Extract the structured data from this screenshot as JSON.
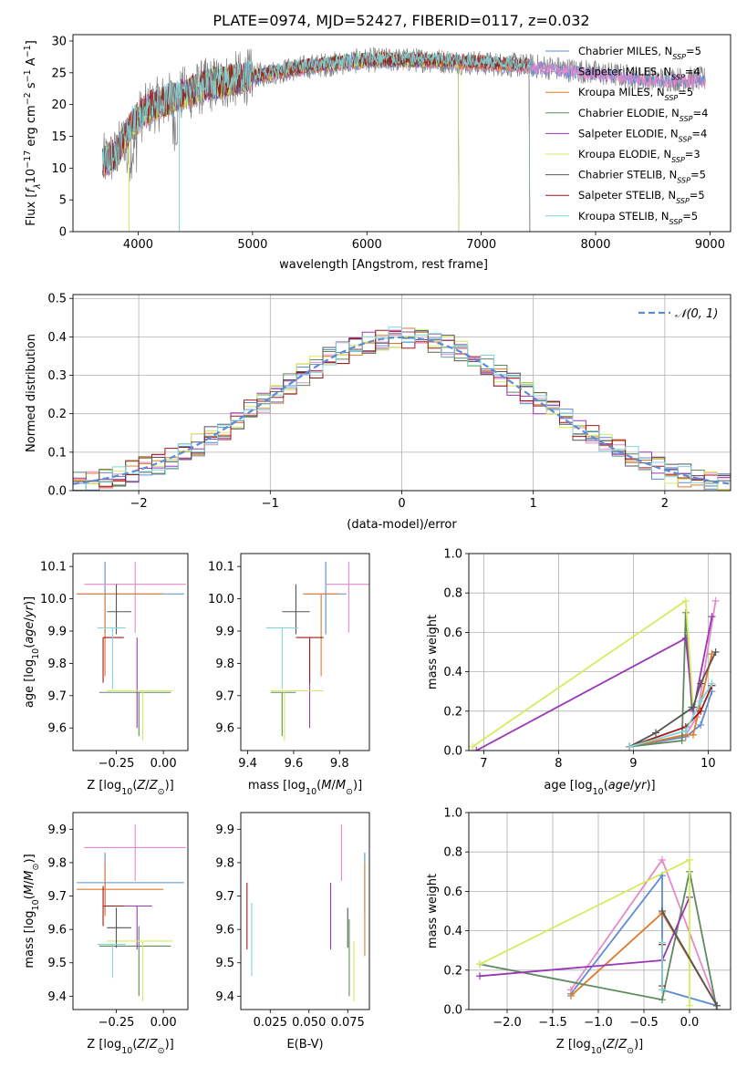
{
  "figure_title": "PLATE=0974, MJD=52427, FIBERID=0117, z=0.032",
  "colors": {
    "chabrier_miles": "#5b8bd6",
    "salpeter_miles": "#e58ac8",
    "kroupa_miles": "#e07a2a",
    "chabrier_elodie": "#5f8a5f",
    "salpeter_elodie": "#9b36b6",
    "kroupa_elodie": "#d4ec5c",
    "chabrier_stelib": "#555555",
    "salpeter_stelib": "#a01818",
    "kroupa_stelib": "#7fd6d8",
    "normal": "#5b8bd6",
    "grid": "#b0b0b0"
  },
  "chart_data": [
    {
      "id": "spectrum",
      "type": "line",
      "title": "PLATE=0974, MJD=52427, FIBERID=0117, z=0.032",
      "xlabel": "wavelength [Angstrom, rest frame]",
      "ylabel": "Flux [f_λ 10^-17 erg cm^-2 s^-1 A^-1]",
      "xlim": [
        3430,
        9180
      ],
      "ylim": [
        0,
        31
      ],
      "xticks": [
        4000,
        5000,
        6000,
        7000,
        8000,
        9000
      ],
      "yticks": [
        0,
        5,
        10,
        15,
        20,
        25,
        30
      ],
      "grid": false,
      "legend": "upper right",
      "legend_entries": [
        {
          "key": "chabrier_miles",
          "label": "Chabrier MILES, N",
          "sub": "SSP",
          "tail": "=5"
        },
        {
          "key": "salpeter_miles",
          "label": "Salpeter MILES, N",
          "sub": "SSP",
          "tail": "=4"
        },
        {
          "key": "kroupa_miles",
          "label": "Kroupa MILES, N",
          "sub": "SSP",
          "tail": "=5"
        },
        {
          "key": "chabrier_elodie",
          "label": "Chabrier ELODIE, N",
          "sub": "SSP",
          "tail": "=4"
        },
        {
          "key": "salpeter_elodie",
          "label": "Salpeter ELODIE, N",
          "sub": "SSP",
          "tail": "=4"
        },
        {
          "key": "kroupa_elodie",
          "label": "Kroupa ELODIE, N",
          "sub": "SSP",
          "tail": "=3"
        },
        {
          "key": "chabrier_stelib",
          "label": "Chabrier STELIB, N",
          "sub": "SSP",
          "tail": "=5"
        },
        {
          "key": "salpeter_stelib",
          "label": "Salpeter STELIB, N",
          "sub": "SSP",
          "tail": "=5"
        },
        {
          "key": "kroupa_stelib",
          "label": "Kroupa STELIB, N",
          "sub": "SSP",
          "tail": "=5"
        }
      ],
      "data_range": [
        3690,
        8960
      ],
      "continuum": [
        [
          3690,
          11
        ],
        [
          3800,
          12
        ],
        [
          3950,
          17
        ],
        [
          4100,
          19.5
        ],
        [
          4300,
          21
        ],
        [
          4600,
          23
        ],
        [
          5000,
          24.5
        ],
        [
          5500,
          26
        ],
        [
          6000,
          27
        ],
        [
          6500,
          27
        ],
        [
          7000,
          26.5
        ],
        [
          7500,
          26
        ],
        [
          8000,
          25
        ],
        [
          8500,
          24
        ],
        [
          8960,
          24
        ]
      ],
      "model_cut_ends": {
        "chabrier_elodie": 6800,
        "salpeter_elodie": 6800,
        "kroupa_elodie": 6800,
        "chabrier_stelib": 7420,
        "salpeter_stelib": 7420,
        "kroupa_stelib": 7420,
        "kroupa_miles": 7420
      },
      "model_drops": [
        [
          3920,
          "kroupa_elodie"
        ],
        [
          4360,
          "kroupa_stelib"
        ]
      ]
    },
    {
      "id": "residuals",
      "type": "histogram",
      "xlabel": "(data-model)/error",
      "ylabel": "Normed distribution",
      "xlim": [
        -2.5,
        2.5
      ],
      "ylim": [
        0,
        0.51
      ],
      "xticks": [
        -2,
        -1,
        0,
        1,
        2
      ],
      "yticks": [
        0.0,
        0.1,
        0.2,
        0.3,
        0.4,
        0.5
      ],
      "grid": true,
      "legend": "upper right",
      "legend_label": "𝒩(0, 1)",
      "bin_width": 0.1
    },
    {
      "id": "z_age",
      "type": "errorbar",
      "xlabel": "Z [log10(Z/Z⊙)]",
      "ylabel": "age [log10(age/yr)]",
      "xlim": [
        -0.48,
        0.13
      ],
      "ylim": [
        9.53,
        10.14
      ],
      "xticks": [
        -0.25,
        0.0
      ],
      "xticklabels": [
        "−0.25",
        "0.00"
      ],
      "yticks": [
        9.6,
        9.7,
        9.8,
        9.9,
        10.0,
        10.1
      ],
      "points": [
        {
          "key": "chabrier_miles",
          "x": -0.31,
          "xerr": [
            0.15,
            0.42
          ],
          "y": 10.015,
          "yerr": [
            0.125,
            0.1
          ]
        },
        {
          "key": "salpeter_miles",
          "x": -0.15,
          "xerr": [
            0.27,
            0.27
          ],
          "y": 10.045,
          "yerr": [
            0.15,
            0.07
          ]
        },
        {
          "key": "kroupa_miles",
          "x": -0.31,
          "xerr": [
            0.15,
            0.31
          ],
          "y": 10.015,
          "yerr": [
            0.255,
            0.0
          ]
        },
        {
          "key": "chabrier_elodie",
          "x": -0.13,
          "xerr": [
            0.21,
            0.17
          ],
          "y": 9.71,
          "yerr": [
            0.135,
            0.0
          ]
        },
        {
          "key": "salpeter_elodie",
          "x": -0.14,
          "xerr": [
            0.15,
            0.08
          ],
          "y": 9.715,
          "yerr": [
            0.115,
            0.165
          ]
        },
        {
          "key": "kroupa_elodie",
          "x": -0.11,
          "xerr": [
            0.19,
            0.16
          ],
          "y": 9.715,
          "yerr": [
            0.155,
            0.0
          ]
        },
        {
          "key": "chabrier_stelib",
          "x": -0.25,
          "xerr": [
            0.05,
            0.08
          ],
          "y": 9.96,
          "yerr": [
            0.07,
            0.085
          ]
        },
        {
          "key": "salpeter_stelib",
          "x": -0.32,
          "xerr": [
            0.0,
            0.11
          ],
          "y": 9.88,
          "yerr": [
            0.14,
            0.0
          ]
        },
        {
          "key": "kroupa_stelib",
          "x": -0.27,
          "xerr": [
            0.08,
            0.07
          ],
          "y": 9.91,
          "yerr": [
            0.19,
            0.0
          ]
        }
      ]
    },
    {
      "id": "mass_age",
      "type": "errorbar",
      "xlabel": "mass [log10(M/M⊙)]",
      "ylabel": "",
      "xlim": [
        9.37,
        9.93
      ],
      "ylim": [
        9.53,
        10.14
      ],
      "xticks": [
        9.4,
        9.6,
        9.8
      ],
      "xticklabels": [
        "9.4",
        "9.6",
        "9.8"
      ],
      "yticks": [
        9.6,
        9.7,
        9.8,
        9.9,
        10.0,
        10.1
      ],
      "points": [
        {
          "key": "chabrier_miles",
          "x": 9.74,
          "xerr": [
            0.09,
            0.09
          ],
          "y": 10.015,
          "yerr": [
            0.125,
            0.1
          ]
        },
        {
          "key": "salpeter_miles",
          "x": 9.84,
          "xerr": [
            0.1,
            0.1
          ],
          "y": 10.045,
          "yerr": [
            0.15,
            0.07
          ]
        },
        {
          "key": "kroupa_miles",
          "x": 9.72,
          "xerr": [
            0.08,
            0.08
          ],
          "y": 10.015,
          "yerr": [
            0.255,
            0.0
          ]
        },
        {
          "key": "chabrier_elodie",
          "x": 9.55,
          "xerr": [
            0.05,
            0.06
          ],
          "y": 9.71,
          "yerr": [
            0.135,
            0.0
          ]
        },
        {
          "key": "salpeter_elodie",
          "x": 9.67,
          "xerr": [
            0.06,
            0.06
          ],
          "y": 9.715,
          "yerr": [
            0.115,
            0.165
          ]
        },
        {
          "key": "kroupa_elodie",
          "x": 9.56,
          "xerr": [
            0.06,
            0.17
          ],
          "y": 9.715,
          "yerr": [
            0.155,
            0.0
          ]
        },
        {
          "key": "chabrier_stelib",
          "x": 9.61,
          "xerr": [
            0.06,
            0.06
          ],
          "y": 9.96,
          "yerr": [
            0.07,
            0.085
          ]
        },
        {
          "key": "salpeter_stelib",
          "x": 9.67,
          "xerr": [
            0.06,
            0.06
          ],
          "y": 9.88,
          "yerr": [
            0.14,
            0.0
          ]
        },
        {
          "key": "kroupa_stelib",
          "x": 9.55,
          "xerr": [
            0.07,
            0.07
          ],
          "y": 9.91,
          "yerr": [
            0.19,
            0.0
          ]
        }
      ]
    },
    {
      "id": "age_weight",
      "type": "line",
      "xlabel": "age [log10(age/yr)]",
      "ylabel": "mass weight",
      "xlim": [
        6.8,
        10.3
      ],
      "ylim": [
        0,
        1
      ],
      "xticks": [
        7,
        8,
        9,
        10
      ],
      "yticks": [
        0.0,
        0.2,
        0.4,
        0.6,
        0.8,
        1.0
      ],
      "grid": true,
      "series": [
        {
          "key": "chabrier_miles",
          "x": [
            8.95,
            9.7,
            9.9,
            10.05
          ],
          "y": [
            0.02,
            0.07,
            0.13,
            0.3
          ]
        },
        {
          "key": "salpeter_miles",
          "x": [
            8.95,
            9.7,
            9.85,
            10.1
          ],
          "y": [
            0.02,
            0.08,
            0.17,
            0.76
          ]
        },
        {
          "key": "kroupa_miles",
          "x": [
            8.95,
            9.7,
            9.8,
            10.05
          ],
          "y": [
            0.02,
            0.08,
            0.08,
            0.49
          ]
        },
        {
          "key": "chabrier_elodie",
          "x": [
            8.95,
            9.65,
            9.7,
            9.78
          ],
          "y": [
            0.02,
            0.05,
            0.7,
            0.22
          ]
        },
        {
          "key": "salpeter_elodie",
          "x": [
            6.9,
            9.7,
            9.8,
            10.05
          ],
          "y": [
            0.0,
            0.57,
            0.2,
            0.68
          ]
        },
        {
          "key": "kroupa_elodie",
          "x": [
            6.85,
            9.7,
            9.8
          ],
          "y": [
            0.02,
            0.76,
            0.22
          ]
        },
        {
          "key": "chabrier_stelib",
          "x": [
            8.95,
            9.3,
            9.8,
            9.9,
            10.1
          ],
          "y": [
            0.02,
            0.09,
            0.22,
            0.34,
            0.5
          ]
        },
        {
          "key": "salpeter_stelib",
          "x": [
            8.95,
            9.7,
            9.9,
            10.05
          ],
          "y": [
            0.02,
            0.12,
            0.2,
            0.33
          ]
        },
        {
          "key": "kroupa_stelib",
          "x": [
            8.95,
            9.7,
            9.9,
            10.05
          ],
          "y": [
            0.02,
            0.1,
            0.25,
            0.34
          ]
        }
      ]
    },
    {
      "id": "z_mass",
      "type": "errorbar",
      "xlabel": "Z [log10(Z/Z⊙)]",
      "ylabel": "mass [log10(M/M⊙)]",
      "xlim": [
        -0.48,
        0.13
      ],
      "ylim": [
        9.36,
        9.95
      ],
      "xticks": [
        -0.25,
        0.0
      ],
      "xticklabels": [
        "−0.25",
        "0.00"
      ],
      "yticks": [
        9.4,
        9.5,
        9.6,
        9.7,
        9.8,
        9.9
      ],
      "points": [
        {
          "key": "chabrier_miles",
          "x": -0.31,
          "xerr": [
            0.15,
            0.42
          ],
          "y": 9.74,
          "yerr": [
            0.09,
            0.09
          ]
        },
        {
          "key": "salpeter_miles",
          "x": -0.15,
          "xerr": [
            0.27,
            0.27
          ],
          "y": 9.845,
          "yerr": [
            0.1,
            0.07
          ]
        },
        {
          "key": "kroupa_miles",
          "x": -0.31,
          "xerr": [
            0.15,
            0.31
          ],
          "y": 9.72,
          "yerr": [
            0.08,
            0.08
          ]
        },
        {
          "key": "chabrier_elodie",
          "x": -0.13,
          "xerr": [
            0.21,
            0.17
          ],
          "y": 9.55,
          "yerr": [
            0.15,
            0.06
          ]
        },
        {
          "key": "salpeter_elodie",
          "x": -0.14,
          "xerr": [
            0.15,
            0.08
          ],
          "y": 9.67,
          "yerr": [
            0.13,
            0.0
          ]
        },
        {
          "key": "kroupa_elodie",
          "x": -0.11,
          "xerr": [
            0.19,
            0.16
          ],
          "y": 9.565,
          "yerr": [
            0.18,
            0.0
          ]
        },
        {
          "key": "chabrier_stelib",
          "x": -0.25,
          "xerr": [
            0.05,
            0.08
          ],
          "y": 9.605,
          "yerr": [
            0.06,
            0.06
          ]
        },
        {
          "key": "salpeter_stelib",
          "x": -0.32,
          "xerr": [
            0.0,
            0.11
          ],
          "y": 9.67,
          "yerr": [
            0.06,
            0.06
          ]
        },
        {
          "key": "kroupa_stelib",
          "x": -0.27,
          "xerr": [
            0.08,
            0.07
          ],
          "y": 9.555,
          "yerr": [
            0.1,
            0.0
          ]
        }
      ]
    },
    {
      "id": "ebv_mass",
      "type": "errorbar",
      "xlabel": "E(B-V)",
      "ylabel": "",
      "xlim": [
        0.006,
        0.089
      ],
      "ylim": [
        9.36,
        9.95
      ],
      "xticks": [
        0.025,
        0.05,
        0.075
      ],
      "xticklabels": [
        "0.025",
        "0.050",
        "0.075"
      ],
      "yticks": [
        9.4,
        9.5,
        9.6,
        9.7,
        9.8,
        9.9
      ],
      "points": [
        {
          "key": "chabrier_miles",
          "x": 0.086,
          "y": 9.74,
          "yerr": [
            0.09,
            0.09
          ]
        },
        {
          "key": "salpeter_miles",
          "x": 0.071,
          "y": 9.845,
          "yerr": [
            0.1,
            0.07
          ]
        },
        {
          "key": "kroupa_miles",
          "x": 0.086,
          "y": 9.72,
          "yerr": [
            0.2,
            0.08
          ]
        },
        {
          "key": "chabrier_elodie",
          "x": 0.076,
          "y": 9.55,
          "yerr": [
            0.15,
            0.08
          ]
        },
        {
          "key": "salpeter_elodie",
          "x": 0.064,
          "y": 9.67,
          "yerr": [
            0.13,
            0.07
          ]
        },
        {
          "key": "kroupa_elodie",
          "x": 0.079,
          "y": 9.565,
          "yerr": [
            0.18,
            0.0
          ]
        },
        {
          "key": "chabrier_stelib",
          "x": 0.075,
          "y": 9.605,
          "yerr": [
            0.06,
            0.06
          ]
        },
        {
          "key": "salpeter_stelib",
          "x": 0.01,
          "y": 9.64,
          "yerr": [
            0.1,
            0.1
          ]
        },
        {
          "key": "kroupa_stelib",
          "x": 0.013,
          "y": 9.57,
          "yerr": [
            0.11,
            0.11
          ]
        }
      ]
    },
    {
      "id": "z_weight",
      "type": "line",
      "xlabel": "Z [log10(Z/Z⊙)]",
      "ylabel": "mass weight",
      "xlim": [
        -2.42,
        0.45
      ],
      "ylim": [
        0,
        1
      ],
      "xticks": [
        -2.0,
        -1.5,
        -1.0,
        -0.5,
        0.0
      ],
      "xticklabels": [
        "−2.0",
        "−1.5",
        "−1.0",
        "−0.5",
        "0.0"
      ],
      "yticks": [
        0.0,
        0.2,
        0.4,
        0.6,
        0.8,
        1.0
      ],
      "grid": true,
      "series": [
        {
          "key": "chabrier_miles",
          "x": [
            -1.3,
            -0.3,
            -0.3,
            0.3
          ],
          "y": [
            0.08,
            0.68,
            0.1,
            0.02
          ]
        },
        {
          "key": "salpeter_miles",
          "x": [
            -1.3,
            -0.3,
            0.3
          ],
          "y": [
            0.1,
            0.76,
            0.02
          ]
        },
        {
          "key": "kroupa_miles",
          "x": [
            -1.3,
            -0.3,
            0.3
          ],
          "y": [
            0.07,
            0.49,
            0.02
          ]
        },
        {
          "key": "chabrier_elodie",
          "x": [
            -2.3,
            -0.3,
            0.0,
            0.3
          ],
          "y": [
            0.23,
            0.05,
            0.7,
            0.0
          ]
        },
        {
          "key": "salpeter_elodie",
          "x": [
            -2.3,
            -0.3,
            0.0
          ],
          "y": [
            0.17,
            0.25,
            0.57
          ]
        },
        {
          "key": "kroupa_elodie",
          "x": [
            -2.3,
            0.0,
            0.0
          ],
          "y": [
            0.23,
            0.76,
            0.02
          ]
        },
        {
          "key": "chabrier_stelib",
          "x": [
            -0.3,
            0.3
          ],
          "y": [
            0.5,
            0.02
          ]
        },
        {
          "key": "salpeter_stelib",
          "x": [
            -0.3,
            -0.3
          ],
          "y": [
            0.33,
            0.12
          ]
        },
        {
          "key": "kroupa_stelib",
          "x": [
            -0.3,
            -0.3
          ],
          "y": [
            0.34,
            0.1
          ]
        }
      ]
    }
  ]
}
